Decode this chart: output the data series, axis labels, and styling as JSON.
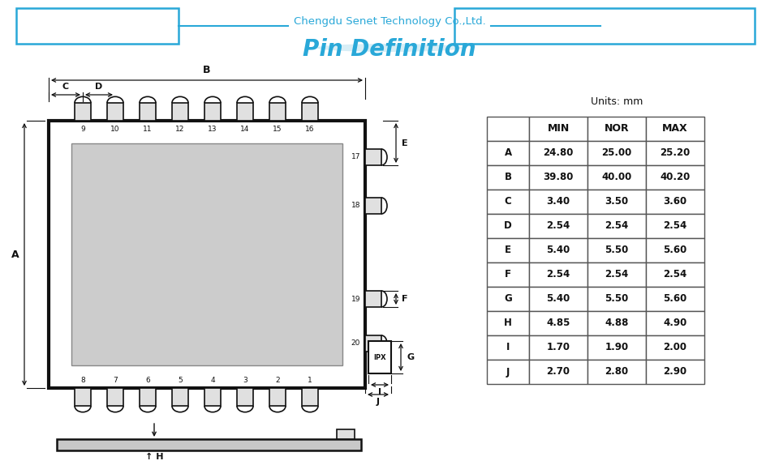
{
  "title_company": "Chengdu Senet Technology Co.,Ltd.",
  "title_main": "Pin Definition",
  "bg_color": "#ffffff",
  "blue_color": "#29a8d8",
  "table_data": {
    "headers": [
      "",
      "MIN",
      "NOR",
      "MAX"
    ],
    "rows": [
      [
        "A",
        "24.80",
        "25.00",
        "25.20"
      ],
      [
        "B",
        "39.80",
        "40.00",
        "40.20"
      ],
      [
        "C",
        "3.40",
        "3.50",
        "3.60"
      ],
      [
        "D",
        "2.54",
        "2.54",
        "2.54"
      ],
      [
        "E",
        "5.40",
        "5.50",
        "5.60"
      ],
      [
        "F",
        "2.54",
        "2.54",
        "2.54"
      ],
      [
        "G",
        "5.40",
        "5.50",
        "5.60"
      ],
      [
        "H",
        "4.85",
        "4.88",
        "4.90"
      ],
      [
        "I",
        "1.70",
        "1.90",
        "2.00"
      ],
      [
        "J",
        "2.70",
        "2.80",
        "2.90"
      ]
    ],
    "units_label": "Units: mm"
  },
  "top_pin_labels": [
    "9",
    "10",
    "11",
    "12",
    "13",
    "14",
    "15",
    "16"
  ],
  "bot_pin_labels": [
    "8",
    "7",
    "6",
    "5",
    "4",
    "3",
    "2",
    "1"
  ],
  "right_pin_labels": [
    "17",
    "18",
    "19",
    "20"
  ]
}
